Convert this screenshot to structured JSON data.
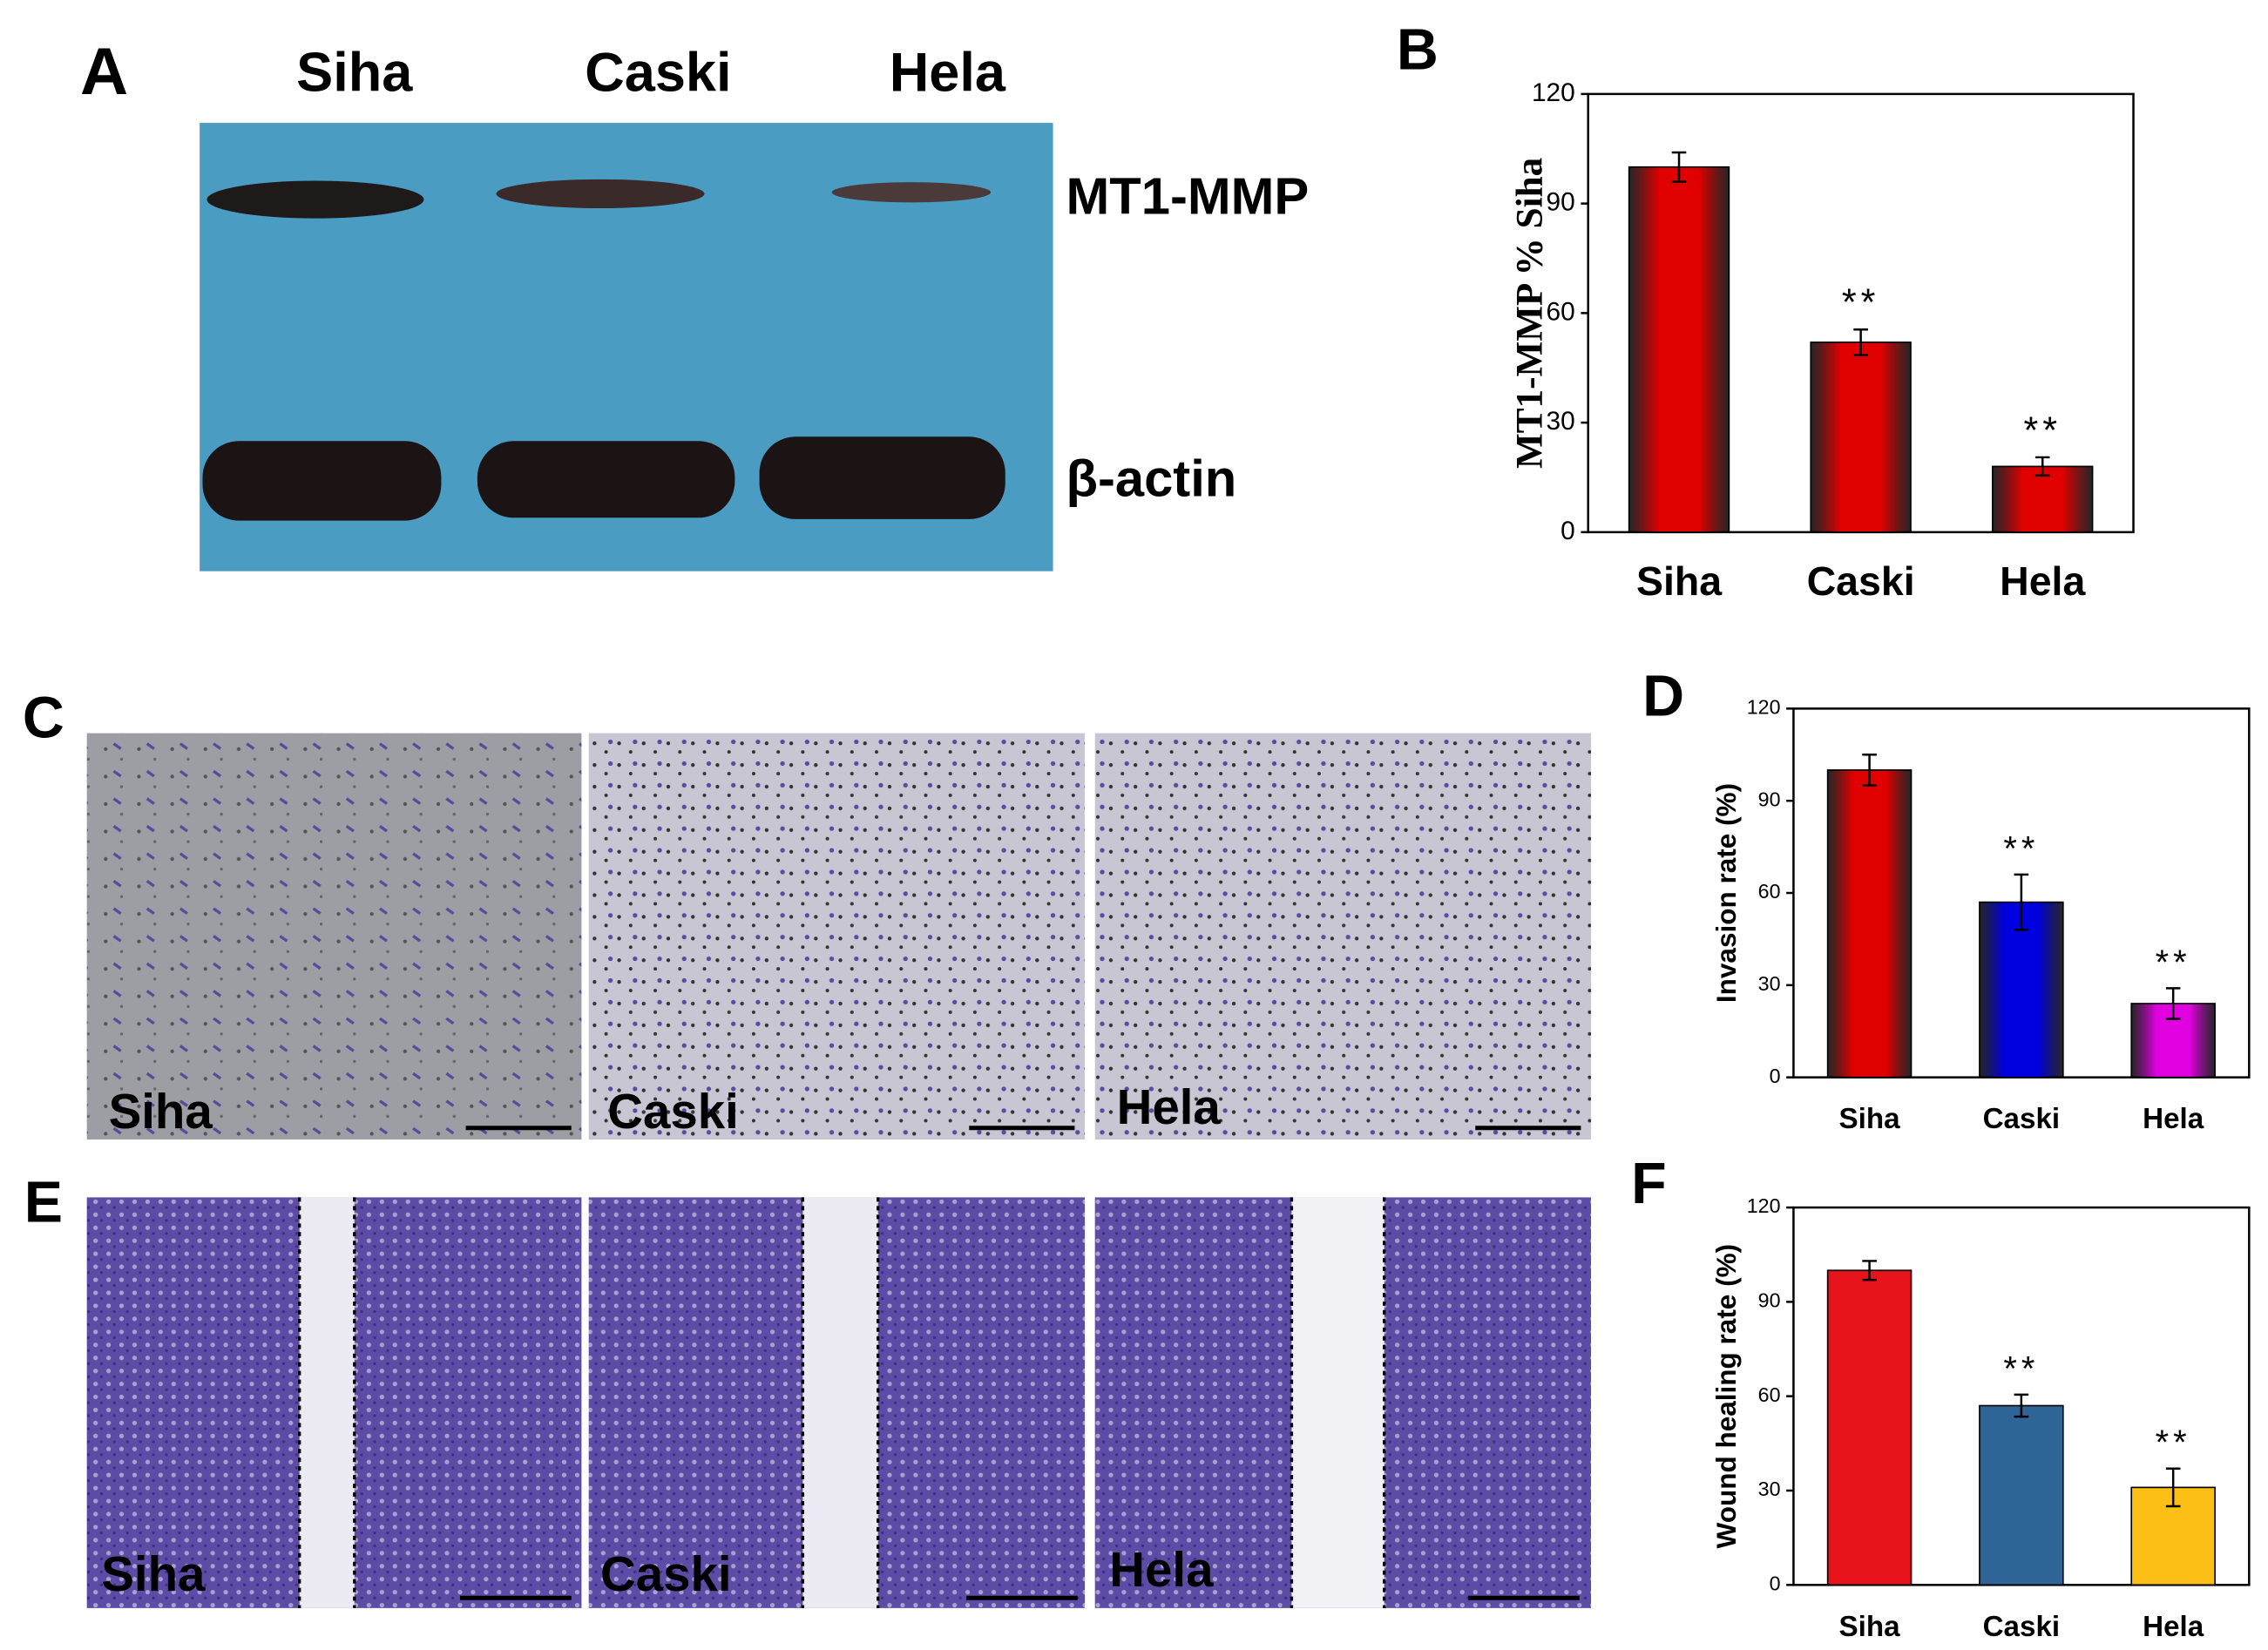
{
  "chart_data": [
    {
      "type": "bar",
      "ylabel": "MT1-MMP % Siha",
      "categories": [
        "Siha",
        "Caski",
        "Hela"
      ],
      "values": [
        100,
        52,
        18
      ],
      "errors": [
        4,
        3.5,
        2.5
      ],
      "annotations": [
        null,
        "**",
        "**"
      ],
      "colors": [
        "#e00000",
        "#e00000",
        "#e00000"
      ],
      "gradient": true,
      "ylim": [
        0,
        120
      ],
      "yticks": [
        0,
        30,
        60,
        90,
        120
      ]
    },
    {
      "type": "bar",
      "ylabel": "Invasion rate (%)",
      "categories": [
        "Siha",
        "Caski",
        "Hela"
      ],
      "values": [
        100,
        57,
        24
      ],
      "errors": [
        5,
        9,
        5
      ],
      "annotations": [
        null,
        "**",
        "**"
      ],
      "colors": [
        "#e00000",
        "#0000e0",
        "#e000e0"
      ],
      "gradient": true,
      "ylim": [
        0,
        120
      ],
      "yticks": [
        0,
        30,
        60,
        90,
        120
      ]
    },
    {
      "type": "bar",
      "ylabel": "Wound healing rate (%)",
      "categories": [
        "Siha",
        "Caski",
        "Hela"
      ],
      "values": [
        100,
        57,
        31
      ],
      "errors": [
        3,
        3.5,
        6
      ],
      "annotations": [
        null,
        "**",
        "**"
      ],
      "colors": [
        "#e8141b",
        "#2f6496",
        "#fbbf16"
      ],
      "gradient": false,
      "ylim": [
        0,
        120
      ],
      "yticks": [
        0,
        30,
        60,
        90,
        120
      ]
    }
  ],
  "figure": {
    "panels": [
      "A",
      "B",
      "C",
      "D",
      "E",
      "F"
    ],
    "blot": {
      "lanes": [
        "Siha",
        "Caski",
        "Hela"
      ],
      "bands": [
        "MT1-MMP",
        "β-actin"
      ]
    },
    "transwell": {
      "labels": [
        "Siha",
        "Caski",
        "Hela"
      ]
    },
    "wound": {
      "labels": [
        "Siha",
        "Caski",
        "Hela"
      ]
    }
  }
}
